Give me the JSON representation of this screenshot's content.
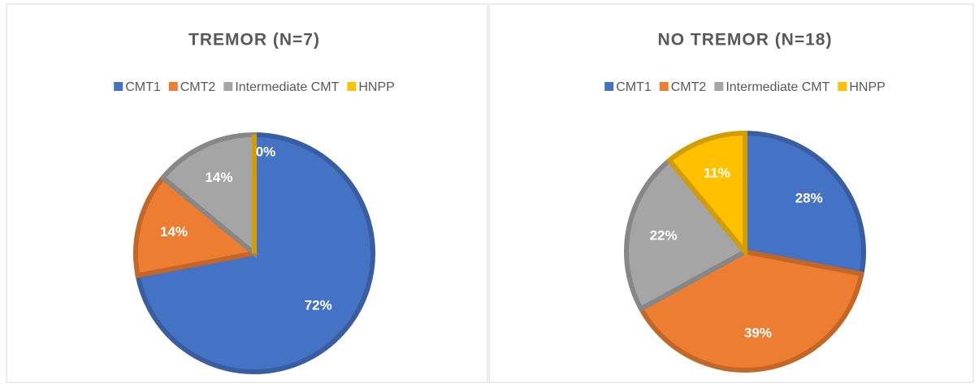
{
  "chart_data": [
    {
      "type": "pie",
      "title": "TREMOR (N=7)",
      "categories": [
        "CMT1",
        "CMT2",
        "Intermediate CMT",
        "HNPP"
      ],
      "values": [
        72,
        14,
        14,
        0
      ],
      "value_labels": [
        "72%",
        "14%",
        "14%",
        "0%"
      ],
      "colors": [
        "#4472c4",
        "#ed7d31",
        "#a5a5a5",
        "#ffc000"
      ],
      "legend": "top"
    },
    {
      "type": "pie",
      "title": "NO TREMOR (N=18)",
      "categories": [
        "CMT1",
        "CMT2",
        "Intermediate CMT",
        "HNPP"
      ],
      "values": [
        28,
        39,
        22,
        11
      ],
      "value_labels": [
        "28%",
        "39%",
        "22%",
        "11%"
      ],
      "colors": [
        "#4472c4",
        "#ed7d31",
        "#a5a5a5",
        "#ffc000"
      ],
      "legend": "top"
    }
  ]
}
